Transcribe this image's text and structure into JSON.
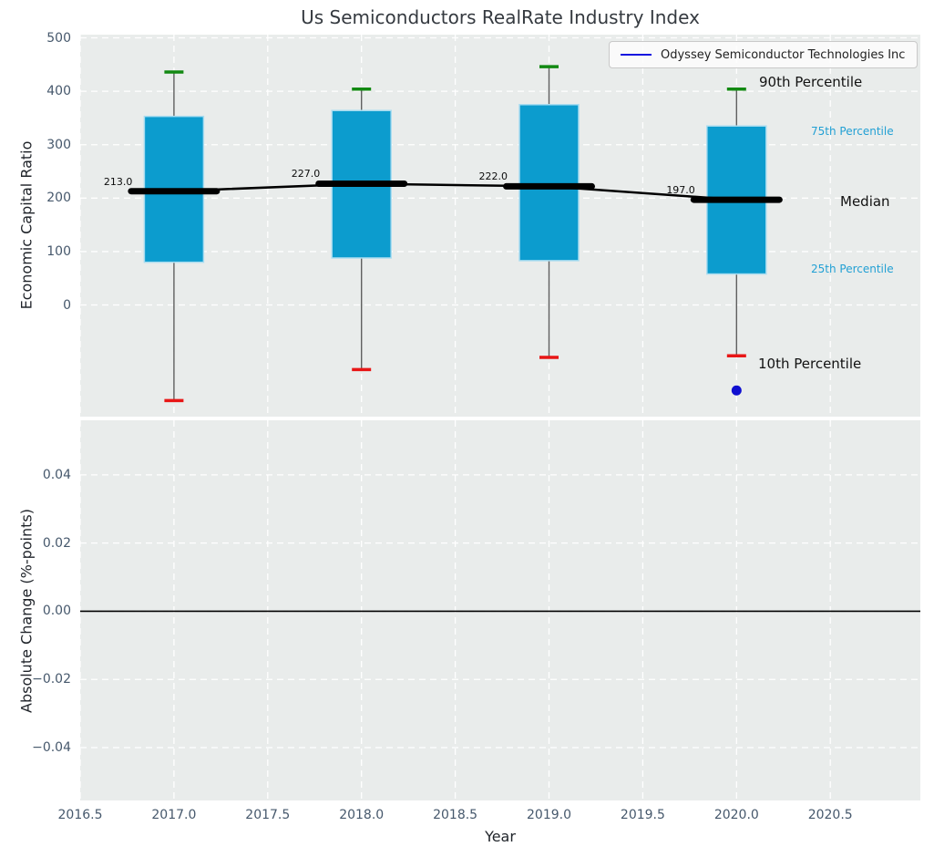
{
  "title": "Us Semiconductors RealRate Industry Index",
  "legend": {
    "label": "Odyssey Semiconductor Technologies Inc",
    "line_color": "#1414e0"
  },
  "side_labels": {
    "p90": "90th Percentile",
    "p75": "75th Percentile",
    "median": "Median",
    "p25": "25th Percentile",
    "p10": "10th Percentile"
  },
  "colors": {
    "plot_bg": "#e9eceb",
    "grid": "#ffffff",
    "tick": "#46586c",
    "box_fill": "#0c9cce",
    "box_edge": "#a9dcf0",
    "whisker": "#5f5f5f",
    "cap_top": "#128912",
    "cap_bottom": "#e81616",
    "median": "#000000",
    "point": "#0f0fd0",
    "cyan_label": "#22a0d4",
    "legend_line": "#1414e0"
  },
  "chart_data": [
    {
      "type": "boxplot",
      "title": "Us Semiconductors RealRate Industry Index",
      "xlabel": "Year",
      "ylabel": "Economic Capital Ratio",
      "xlim": [
        2016.5,
        2020.98
      ],
      "ylim": [
        -209,
        506
      ],
      "xticks": [
        2016.5,
        2017.0,
        2017.5,
        2018.0,
        2018.5,
        2019.0,
        2019.5,
        2020.0,
        2020.5
      ],
      "yticks": [
        0,
        100,
        200,
        300,
        400,
        500
      ],
      "grid": true,
      "legend_position": "upper right",
      "boxes": [
        {
          "x": 2017,
          "median": 213.0,
          "q3": 353,
          "q1": 80,
          "p90": 436,
          "p10": -179
        },
        {
          "x": 2018,
          "median": 227.0,
          "q3": 364,
          "q1": 88,
          "p90": 404,
          "p10": -121
        },
        {
          "x": 2019,
          "median": 222.0,
          "q3": 375,
          "q1": 83,
          "p90": 446,
          "p10": -98
        },
        {
          "x": 2020,
          "median": 197.0,
          "q3": 335,
          "q1": 58,
          "p90": 404,
          "p10": -95
        }
      ],
      "median_labels": [
        "213.0",
        "227.0",
        "222.0",
        "197.0"
      ],
      "median_series": {
        "x": [
          2017,
          2018,
          2019,
          2020
        ],
        "y": [
          213.0,
          227.0,
          222.0,
          197.0
        ]
      },
      "scatter": [
        {
          "name": "Odyssey Semiconductor Technologies Inc",
          "x": 2020.0,
          "y": -160
        }
      ]
    },
    {
      "type": "line",
      "xlabel": "Year",
      "ylabel": "Absolute Change (%-points)",
      "xlim": [
        2016.5,
        2020.98
      ],
      "ylim": [
        -0.0555,
        0.056
      ],
      "xticks": [
        2016.5,
        2017.0,
        2017.5,
        2018.0,
        2018.5,
        2019.0,
        2019.5,
        2020.0,
        2020.5
      ],
      "yticks": [
        -0.04,
        -0.02,
        0.0,
        0.02,
        0.04
      ],
      "grid": true,
      "zero_line": 0.0,
      "series": []
    }
  ]
}
